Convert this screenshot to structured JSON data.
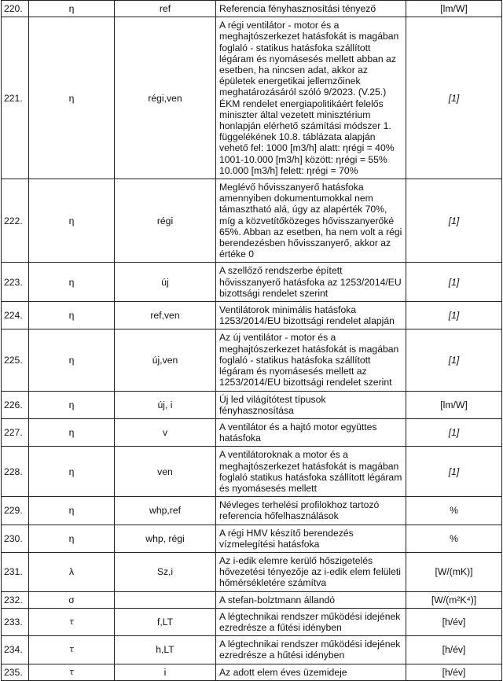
{
  "rows": [
    {
      "num": "220.",
      "sym": "η",
      "sub": "ref",
      "desc": "Referencia fényhasznosítási tényező",
      "unit": "[lm/W]",
      "unit_italic": false
    },
    {
      "num": "221.",
      "sym": "η",
      "sub": "régi,ven",
      "desc": "A régi ventilátor - motor és a meghajtószerkezet hatásfokát is magában foglaló - statikus hatásfoka szállított légáram és nyomásesés mellett abban az esetben, ha nincsen adat, akkor az épületek energetikai jellemzőinek meghatározásáról szóló 9/2023. (V.25.) ÉKM rendelet energiapolitikáért felelős miniszter által vezetett minisztérium honlapján elérhető számítási módszer 1. függelékének 10.8. táblázata alapján vehető fel: 1000 [m3/h] alatt: ηrégi = 40% 1001-10.000 [m3/h] között: ηrégi = 55% 10.000 [m3/h] felett: ηrégi = 70%",
      "unit": "[1]",
      "unit_italic": true
    },
    {
      "num": "222.",
      "sym": "η",
      "sub": "régi",
      "desc": "Meglévő hővisszanyerő hatásfoka amennyiben dokumentumokkal nem támasztható alá, úgy az alapérték 70%, míg a közvetítőközeges hővisszanyerőké 65%. Abban az esetben, ha nem volt a régi berendezésben hővisszanyerő, akkor az értéke 0",
      "unit": "[1]",
      "unit_italic": true
    },
    {
      "num": "223.",
      "sym": "η",
      "sub": "új",
      "desc": "A szellőző rendszerbe épített hővisszanyerő hatásfoka az 1253/2014/EU bizottsági rendelet szerint",
      "unit": "[1]",
      "unit_italic": true
    },
    {
      "num": "224.",
      "sym": "η",
      "sub": "ref,ven",
      "desc": "Ventilátorok minimális hatásfoka 1253/2014/EU bizottsági rendelet alapján",
      "unit": "[1]",
      "unit_italic": true
    },
    {
      "num": "225.",
      "sym": "η",
      "sub": "új,ven",
      "desc": "Az új ventilátor - motor és a meghajtószerkezet hatásfokát is magában foglaló - statikus hatásfoka szállított légáram és nyomásesés mellett az 1253/2014/EU bizottsági rendelet szerint",
      "unit": "[1]",
      "unit_italic": true
    },
    {
      "num": "226.",
      "sym": "η",
      "sub": "új, i",
      "desc": "Új led világítótest típusok fényhasznosítása",
      "unit": "[lm/W]",
      "unit_italic": false
    },
    {
      "num": "227.",
      "sym": "η",
      "sub": "v",
      "desc": "A ventilátor és a hajtó motor együttes hatásfoka",
      "unit": "[1]",
      "unit_italic": true
    },
    {
      "num": "228.",
      "sym": "η",
      "sub": "ven",
      "desc": "A ventilátoroknak a motor és a meghajtószerkezet hatásfokát is magában foglaló statikus hatásfoka szállított légáram és nyomásesés mellett",
      "unit": "[1]",
      "unit_italic": true
    },
    {
      "num": "229.",
      "sym": "η",
      "sub": "whp,ref",
      "desc": "Névleges terhelési profilokhoz tartozó referencia hőfelhasználások",
      "unit": "%",
      "unit_italic": false
    },
    {
      "num": "230.",
      "sym": "η",
      "sub": "whp, régi",
      "desc": "A régi HMV készítő berendezés vízmelegítési hatásfoka",
      "unit": "%",
      "unit_italic": false
    },
    {
      "num": "231.",
      "sym": "λ",
      "sub": "Sz,i",
      "desc": "Az i-edik elemre kerülő hőszigetelés hővezetési tényezője az i-edik elem felületi hőmérsékletére számítva",
      "unit": "[W/(mK)]",
      "unit_italic": false
    },
    {
      "num": "232.",
      "sym": "σ",
      "sub": "",
      "desc": "A stefan-bolztmann állandó",
      "unit": "[W/(m²K⁴)]",
      "unit_italic": false
    },
    {
      "num": "233.",
      "sym": "τ",
      "sub": "f,LT",
      "desc": "A légtechnikai rendszer működési idejének ezredrésze a fűtési idényben",
      "unit": "[h/év]",
      "unit_italic": false
    },
    {
      "num": "234.",
      "sym": "τ",
      "sub": "h,LT",
      "desc": "A légtechnikai rendszer működési idejének ezredrésze a hűtési idényben",
      "unit": "[h/év]",
      "unit_italic": false
    },
    {
      "num": "235.",
      "sym": "τ",
      "sub": "i",
      "desc": "Az adott elem éves üzemideje",
      "unit": "[h/év]",
      "unit_italic": false
    }
  ]
}
